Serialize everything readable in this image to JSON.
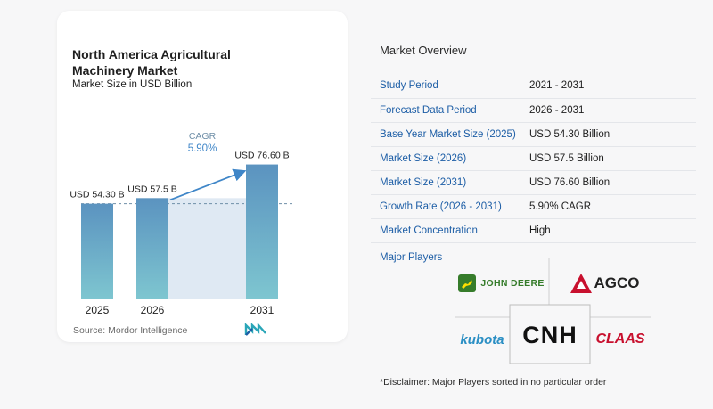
{
  "chart": {
    "title_line1": "North America Agricultural",
    "title_line2": "Machinery Market",
    "subtitle": "Market Size in USD Billion",
    "source": "Source:  Mordor Intelligence",
    "cagr_label": "CAGR",
    "cagr_value": "5.90%"
  },
  "chart_data": {
    "type": "bar",
    "categories": [
      "2025",
      "2026",
      "2031"
    ],
    "values": [
      54.3,
      57.5,
      76.6
    ],
    "data_labels": [
      "USD 54.30 B",
      "USD 57.5 B",
      "USD 76.60 B"
    ],
    "title": "North America Agricultural Machinery Market",
    "subtitle": "Market Size in USD Billion",
    "xlabel": "",
    "ylabel": "",
    "ylim": [
      0,
      80
    ],
    "grid": false,
    "annotation": "CAGR 5.90%",
    "colors": {
      "bar_top": "#5b93c0",
      "bar_bottom": "#7ec6d0",
      "band": "#dfe9f3",
      "accent": "#3f86c8"
    }
  },
  "overview": {
    "title": "Market Overview",
    "rows": [
      {
        "key": "Study Period",
        "value": "2021 - 2031"
      },
      {
        "key": "Forecast Data Period",
        "value": "2026 - 2031"
      },
      {
        "key": "Base Year Market Size (2025)",
        "value": "USD 54.30 Billion"
      },
      {
        "key": "Market Size (2026)",
        "value": "USD 57.5 Billion"
      },
      {
        "key": "Market Size (2031)",
        "value": "USD 76.60 Billion"
      },
      {
        "key": "Growth Rate (2026 - 2031)",
        "value": "5.90% CAGR"
      },
      {
        "key": "Market Concentration",
        "value": "High"
      }
    ],
    "major_players_label": "Major Players",
    "players": {
      "deere": "JOHN DEERE",
      "agco": "AGCO",
      "kubota": "kubota",
      "cnh": "CNH",
      "claas": "CLAAS"
    },
    "disclaimer": "*Disclaimer: Major Players sorted in no particular order"
  }
}
